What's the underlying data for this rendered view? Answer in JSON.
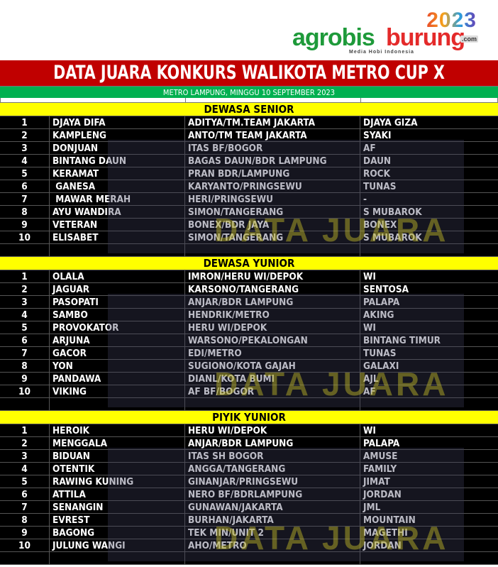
{
  "logo": {
    "year": "2023",
    "brand_green": "agrobis",
    "brand_red": "burung",
    "domain": ".com",
    "tagline": "Media Hobi Indonesia"
  },
  "header": {
    "title": "DATA JUARA KONKURS WALIKOTA METRO CUP X 2023",
    "subtitle": "METRO LAMPUNG, MINGGU 10 SEPTEMBER 2023"
  },
  "watermark": "DATA JUARA",
  "colors": {
    "title_bg": "#c00000",
    "subtitle_bg": "#00b050",
    "section_bg": "#ffff00",
    "table_bg": "#000000"
  },
  "sections": [
    {
      "title": "DEWASA SENIOR",
      "rows": [
        [
          "1",
          "DJAYA DIFA",
          "ADITYA/TM.TEAM JAKARTA",
          "DJAYA GIZA"
        ],
        [
          "2",
          "KAMPLENG",
          "ANTO/TM TEAM JAKARTA",
          "SYAKI"
        ],
        [
          "3",
          "DONJUAN",
          "ITAS BF/BOGOR",
          "AF"
        ],
        [
          "4",
          "BINTANG DAUN",
          "BAGAS DAUN/BDR LAMPUNG",
          "DAUN"
        ],
        [
          "5",
          "KERAMAT",
          "PRAN BDR/LAMPUNG",
          "ROCK"
        ],
        [
          "6",
          " GANESA",
          "KARYANTO/PRINGSEWU",
          "TUNAS"
        ],
        [
          "7",
          " MAWAR MERAH",
          "HERI/PRINGSEWU",
          "-"
        ],
        [
          "8",
          "AYU WANDIRA",
          "SIMON/TANGERANG",
          "S MUBAROK"
        ],
        [
          "9",
          "VETERAN",
          "BONEX/BDR JAYA",
          "BONEX"
        ],
        [
          "10",
          "ELISABET",
          "SIMON/TANGERANG",
          "S MUBAROK"
        ]
      ]
    },
    {
      "title": "DEWASA YUNIOR",
      "rows": [
        [
          "1",
          "OLALA",
          "IMRON/HERU WI/DEPOK",
          "WI"
        ],
        [
          "2",
          "JAGUAR",
          "KARSONO/TANGERANG",
          "SENTOSA"
        ],
        [
          "3",
          "PASOPATI",
          "ANJAR/BDR LAMPUNG",
          "PALAPA"
        ],
        [
          "4",
          "SAMBO",
          "HENDRIK/METRO",
          "AKING"
        ],
        [
          "5",
          "PROVOKATOR",
          "HERU WI/DEPOK",
          "WI"
        ],
        [
          "6",
          "ARJUNA",
          "WARSONO/PEKALONGAN",
          "BINTANG TIMUR"
        ],
        [
          "7",
          "GACOR",
          "EDI/METRO",
          "TUNAS"
        ],
        [
          "8",
          "YON",
          "SUGIONO/KOTA GAJAH",
          "GALAXI"
        ],
        [
          "9",
          "PANDAWA",
          "DIANL/KOTA BUMI",
          "AJL"
        ],
        [
          "10",
          "VIKING",
          "AF BF/BOGOR",
          "AF"
        ]
      ]
    },
    {
      "title": "PIYIK YUNIOR",
      "rows": [
        [
          "1",
          "HEROIK",
          "HERU WI/DEPOK",
          "WI"
        ],
        [
          "2",
          "MENGGALA",
          "ANJAR/BDR LAMPUNG",
          "PALAPA"
        ],
        [
          "3",
          "BIDUAN",
          "ITAS SH BOGOR",
          "AMUSE"
        ],
        [
          "4",
          "OTENTIK",
          "ANGGA/TANGERANG",
          "FAMILY"
        ],
        [
          "5",
          "RAWING KUNING",
          "GINANJAR/PRINGSEWU",
          "JIMAT"
        ],
        [
          "6",
          "ATTILA",
          "NERO BF/BDRLAMPUNG",
          "JORDAN"
        ],
        [
          "7",
          "SENANGIN",
          "GUNAWAN/JAKARTA",
          "JML"
        ],
        [
          "8",
          "EVREST",
          "BURHAN/JAKARTA",
          "MOUNTAIN"
        ],
        [
          "9",
          "BAGONG",
          "TEK MIN/UNIT 2",
          "MAGETHI"
        ],
        [
          "10",
          "JULUNG WANGI",
          "AHO/METRO",
          "JORDAN"
        ]
      ]
    }
  ]
}
